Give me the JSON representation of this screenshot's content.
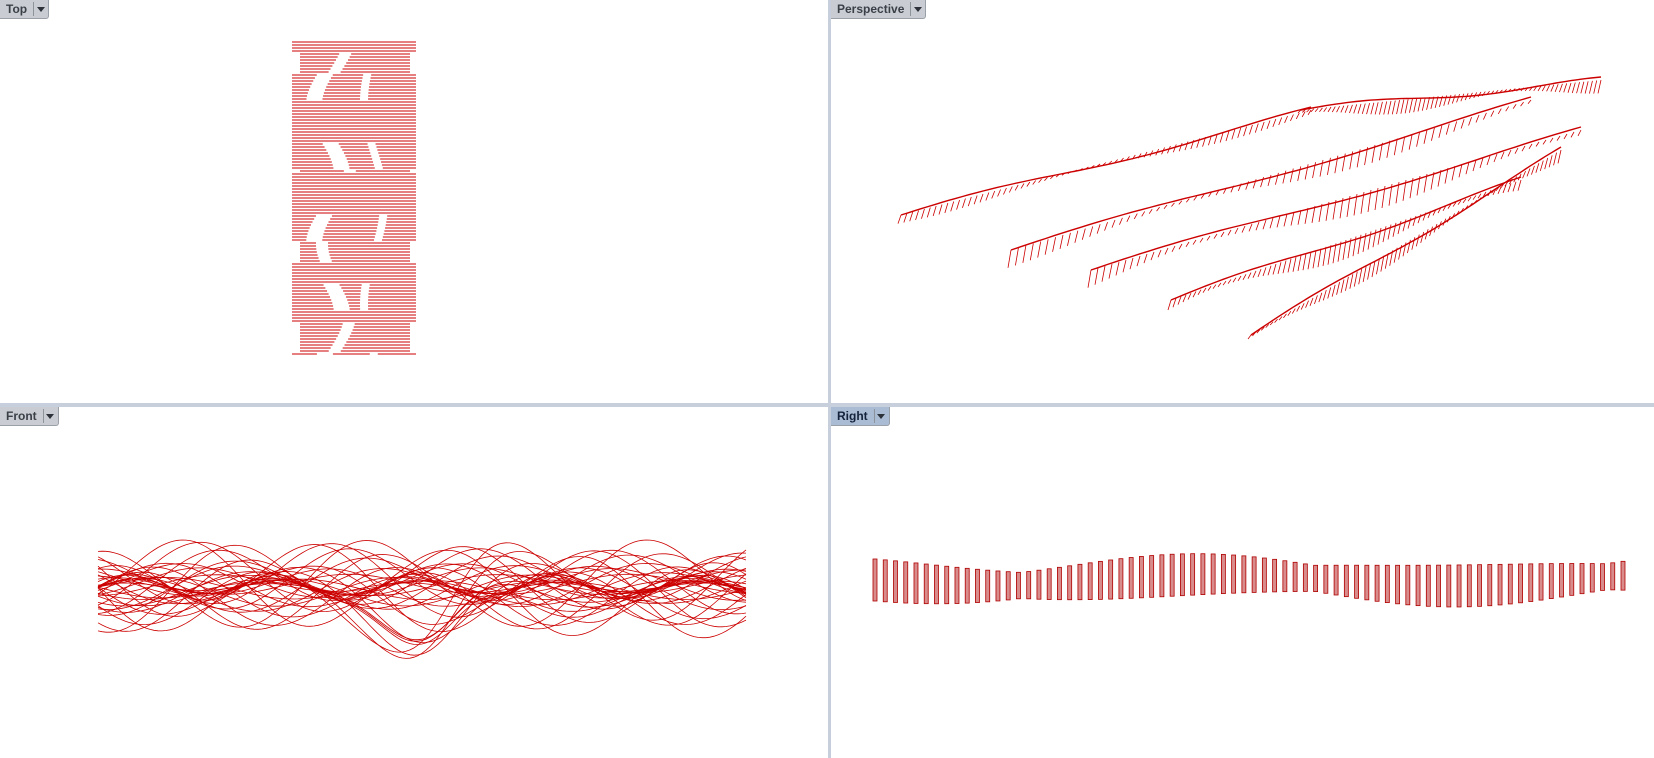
{
  "viewports": {
    "top": {
      "label": "Top"
    },
    "perspective": {
      "label": "Perspective"
    },
    "front": {
      "label": "Front"
    },
    "right": {
      "label": "Right"
    }
  },
  "active_viewport": "right",
  "colors": {
    "curve": "#cc0000",
    "background": "#ffffff",
    "tab_inactive": "#c9cdd3",
    "tab_active": "#a9bcd4",
    "divider": "#c7cfdc"
  },
  "icons": {
    "viewport_menu": "chevron-down-icon"
  }
}
